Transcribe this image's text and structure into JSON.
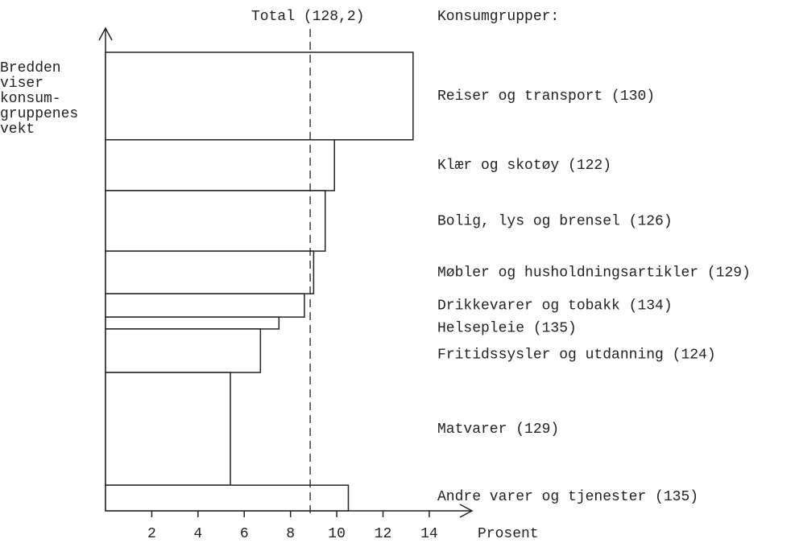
{
  "chart_data": {
    "type": "variable-width-bar",
    "total_label": "Total (128,2)",
    "total_value": 8.85,
    "legend_title": "Konsumgrupper:",
    "y_axis_note": [
      "Bredden",
      "viser",
      "konsum-",
      "gruppenes",
      "vekt"
    ],
    "x_label": "Prosent",
    "categories": [
      "Reiser og transport (130)",
      "Klær og skotøy (122)",
      "Bolig, lys og brensel (126)",
      "Møbler og husholdningsartikler (129)",
      "Drikkevarer og tobakk (134)",
      "Helsepleie (135)",
      "Fritidssysler og utdanning (124)",
      "Matvarer (129)",
      "Andre varer og tjenester (135)"
    ],
    "values": [
      13.3,
      9.9,
      9.5,
      9.0,
      8.6,
      7.5,
      6.7,
      5.4,
      10.5
    ],
    "weights": [
      19.1,
      11.1,
      13.2,
      9.3,
      5.1,
      2.6,
      9.5,
      24.6,
      5.6
    ],
    "xlim": [
      0,
      15.5
    ],
    "xticks": [
      2,
      4,
      6,
      8,
      10,
      12,
      14
    ],
    "color": "#ffffff"
  }
}
